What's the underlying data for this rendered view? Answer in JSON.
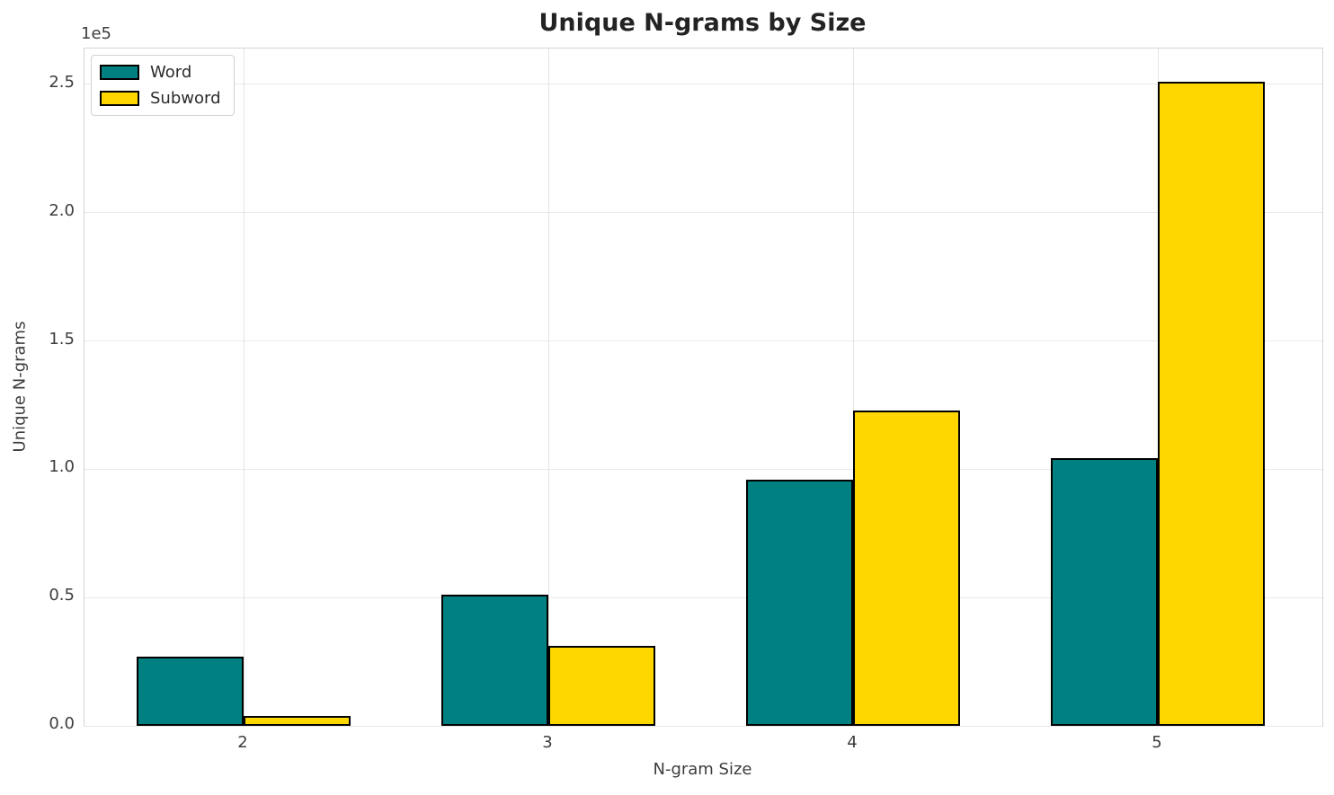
{
  "chart_data": {
    "type": "bar",
    "title": "Unique N-grams by Size",
    "xlabel": "N-gram Size",
    "ylabel": "Unique N-grams",
    "offset_text": "1e5",
    "categories": [
      "2",
      "3",
      "4",
      "5"
    ],
    "series": [
      {
        "name": "Word",
        "color": "#008080",
        "values": [
          27000,
          51000,
          96000,
          104500
        ]
      },
      {
        "name": "Subword",
        "color": "#FFD700",
        "values": [
          3800,
          31000,
          123000,
          251000
        ]
      }
    ],
    "ylim": [
      0,
      264000
    ],
    "yticks": {
      "values": [
        0,
        50000,
        100000,
        150000,
        200000,
        250000
      ],
      "labels": [
        "0.0",
        "0.5",
        "1.0",
        "1.5",
        "2.0",
        "2.5"
      ]
    },
    "grid": true,
    "legend_position": "upper left",
    "bar_edge_color": "#000000",
    "grid_color": "#e9e9e9"
  }
}
